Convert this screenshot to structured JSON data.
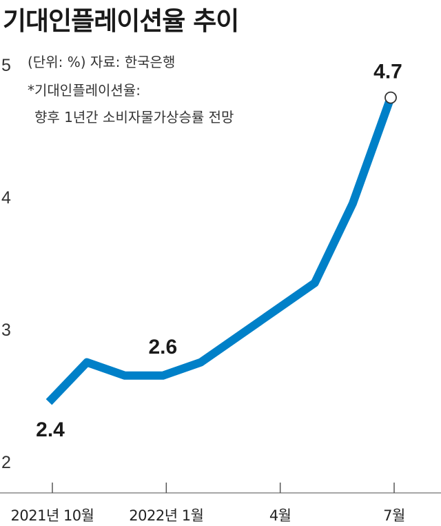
{
  "chart_data": {
    "type": "line",
    "title": "기대인플레이션율 추이",
    "unit_note": "(단위: %) 자료: 한국은행",
    "definition_note_1": "*기대인플레이션율:",
    "definition_note_2": "향후 1년간 소비자물가상승률 전망",
    "x": [
      "2021-10",
      "2021-11",
      "2021-12",
      "2022-01",
      "2022-02",
      "2022-03",
      "2022-04",
      "2022-05",
      "2022-06",
      "2022-07"
    ],
    "x_tick_labels": [
      {
        "at": "2021-10",
        "label": "2021년 10월"
      },
      {
        "at": "2022-01",
        "label": "2022년 1월"
      },
      {
        "at": "2022-04",
        "label": "4월"
      },
      {
        "at": "2022-07",
        "label": "7월"
      }
    ],
    "series": [
      {
        "values": [
          2.4,
          2.7,
          2.6,
          2.6,
          2.7,
          2.9,
          3.1,
          3.3,
          3.9,
          4.7
        ]
      }
    ],
    "data_labels": [
      {
        "at": "2021-10",
        "label": "2.4"
      },
      {
        "at": "2022-01",
        "label": "2.6"
      },
      {
        "at": "2022-07",
        "label": "4.7"
      }
    ],
    "y_ticks": [
      "2",
      "3",
      "4",
      "5"
    ],
    "ylim": [
      2,
      5
    ],
    "grid": false,
    "legend": "none",
    "line_color": "#0080c8",
    "marker_fill": "#ffffff",
    "marker_stroke": "#333333"
  }
}
